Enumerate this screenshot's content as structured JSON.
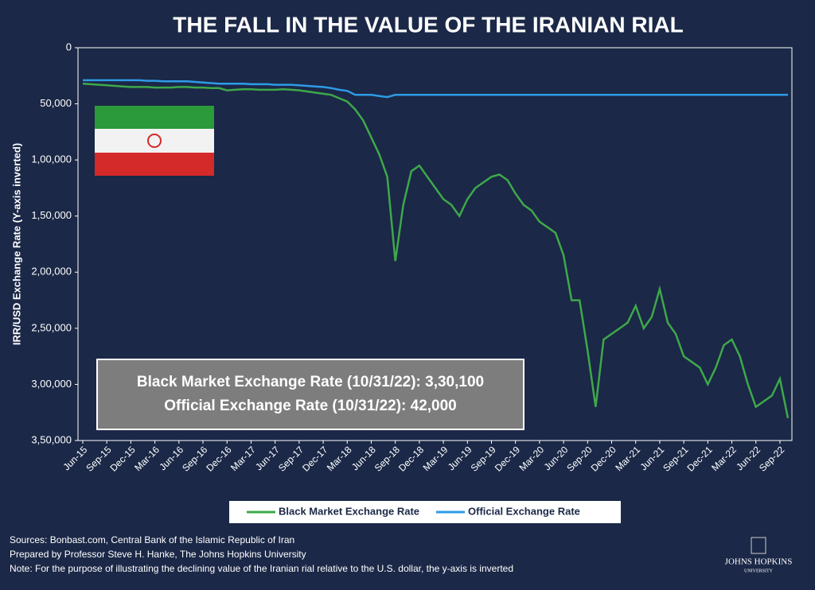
{
  "chart_data": {
    "type": "line",
    "title": "THE FALL IN THE VALUE OF THE IRANIAN RIAL",
    "y_label": "IRR/USD Exchange Rate (Y-axis inverted)",
    "y_inverted": true,
    "x": [
      "Jun-15",
      "Jul-15",
      "Aug-15",
      "Sep-15",
      "Oct-15",
      "Nov-15",
      "Dec-15",
      "Jan-16",
      "Feb-16",
      "Mar-16",
      "Apr-16",
      "May-16",
      "Jun-16",
      "Jul-16",
      "Aug-16",
      "Sep-16",
      "Oct-16",
      "Nov-16",
      "Dec-16",
      "Jan-17",
      "Feb-17",
      "Mar-17",
      "Apr-17",
      "May-17",
      "Jun-17",
      "Jul-17",
      "Aug-17",
      "Sep-17",
      "Oct-17",
      "Nov-17",
      "Dec-17",
      "Jan-18",
      "Feb-18",
      "Mar-18",
      "Apr-18",
      "May-18",
      "Jun-18",
      "Jul-18",
      "Aug-18",
      "Sep-18",
      "Oct-18",
      "Nov-18",
      "Dec-18",
      "Jan-19",
      "Feb-19",
      "Mar-19",
      "Apr-19",
      "May-19",
      "Jun-19",
      "Jul-19",
      "Aug-19",
      "Sep-19",
      "Oct-19",
      "Nov-19",
      "Dec-19",
      "Jan-20",
      "Feb-20",
      "Mar-20",
      "Apr-20",
      "May-20",
      "Jun-20",
      "Jul-20",
      "Aug-20",
      "Sep-20",
      "Oct-20",
      "Nov-20",
      "Dec-20",
      "Jan-21",
      "Feb-21",
      "Mar-21",
      "Apr-21",
      "May-21",
      "Jun-21",
      "Jul-21",
      "Aug-21",
      "Sep-21",
      "Oct-21",
      "Nov-21",
      "Dec-21",
      "Jan-22",
      "Feb-22",
      "Mar-22",
      "Apr-22",
      "May-22",
      "Jun-22",
      "Jul-22",
      "Aug-22",
      "Sep-22",
      "Oct-22"
    ],
    "xticks": [
      "Jun-15",
      "Sep-15",
      "Dec-15",
      "Mar-16",
      "Jun-16",
      "Sep-16",
      "Dec-16",
      "Mar-17",
      "Jun-17",
      "Sep-17",
      "Dec-17",
      "Mar-18",
      "Jun-18",
      "Sep-18",
      "Dec-18",
      "Mar-19",
      "Jun-19",
      "Sep-19",
      "Dec-19",
      "Mar-20",
      "Jun-20",
      "Sep-20",
      "Dec-20",
      "Mar-21",
      "Jun-21",
      "Sep-21",
      "Dec-21",
      "Mar-22",
      "Jun-22",
      "Sep-22"
    ],
    "ylim": [
      0,
      350000
    ],
    "yticks": [
      0,
      {
        "value": 50000,
        "label": "50,000"
      },
      {
        "value": 100000,
        "label": "1,00,000"
      },
      {
        "value": 150000,
        "label": "1,50,000"
      },
      {
        "value": 200000,
        "label": "2,00,000"
      },
      {
        "value": 250000,
        "label": "2,50,000"
      },
      {
        "value": 300000,
        "label": "3,00,000"
      },
      {
        "value": 350000,
        "label": "3,50,000"
      }
    ],
    "series": [
      {
        "name": "Black Market Exchange Rate",
        "color": "#3ea84a",
        "values": [
          32000,
          32500,
          33000,
          33500,
          34000,
          34500,
          35000,
          35000,
          35000,
          35500,
          35500,
          35500,
          35000,
          35000,
          35500,
          35500,
          36000,
          36000,
          38000,
          37500,
          37000,
          37000,
          37500,
          37500,
          37500,
          37000,
          37500,
          38000,
          39000,
          40000,
          41000,
          42000,
          45000,
          48000,
          55000,
          65000,
          80000,
          95000,
          115000,
          190000,
          140000,
          110000,
          105000,
          115000,
          125000,
          135000,
          140000,
          150000,
          135000,
          125000,
          120000,
          115000,
          113000,
          118000,
          130000,
          140000,
          145000,
          155000,
          160000,
          165000,
          185000,
          225000,
          225000,
          270000,
          320000,
          260000,
          255000,
          250000,
          245000,
          230000,
          250000,
          240000,
          215000,
          245000,
          255000,
          275000,
          280000,
          285000,
          300000,
          285000,
          265000,
          260000,
          275000,
          300000,
          320000,
          315000,
          310000,
          295000,
          330100
        ]
      },
      {
        "name": "Official Exchange Rate",
        "color": "#2e9be6",
        "values": [
          29000,
          29000,
          29000,
          29000,
          29000,
          29000,
          29000,
          29000,
          29500,
          29500,
          30000,
          30000,
          30000,
          30000,
          30500,
          31000,
          31500,
          32000,
          32000,
          32000,
          32000,
          32500,
          32500,
          32500,
          33000,
          33000,
          33000,
          33500,
          34000,
          34500,
          35000,
          36000,
          37500,
          38500,
          42000,
          42000,
          42000,
          43000,
          44000,
          42000,
          42000,
          42000,
          42000,
          42000,
          42000,
          42000,
          42000,
          42000,
          42000,
          42000,
          42000,
          42000,
          42000,
          42000,
          42000,
          42000,
          42000,
          42000,
          42000,
          42000,
          42000,
          42000,
          42000,
          42000,
          42000,
          42000,
          42000,
          42000,
          42000,
          42000,
          42000,
          42000,
          42000,
          42000,
          42000,
          42000,
          42000,
          42000,
          42000,
          42000,
          42000,
          42000,
          42000,
          42000,
          42000,
          42000,
          42000,
          42000,
          42000
        ]
      }
    ],
    "annotation": [
      "Black Market Exchange Rate (10/31/22): 3,30,100",
      "Official Exchange Rate (10/31/22): 42,000"
    ],
    "footer": [
      "Sources: Bonbast.com, Central Bank of the Islamic Republic of Iran",
      "Prepared by Professor Steve H. Hanke, The Johns Hopkins University",
      "Note: For the purpose of illustrating the declining value of the Iranian rial relative to the U.S. dollar, the y-axis is inverted"
    ],
    "logo": [
      "JOHNS HOPKINS",
      "UNIVERSITY"
    ]
  }
}
